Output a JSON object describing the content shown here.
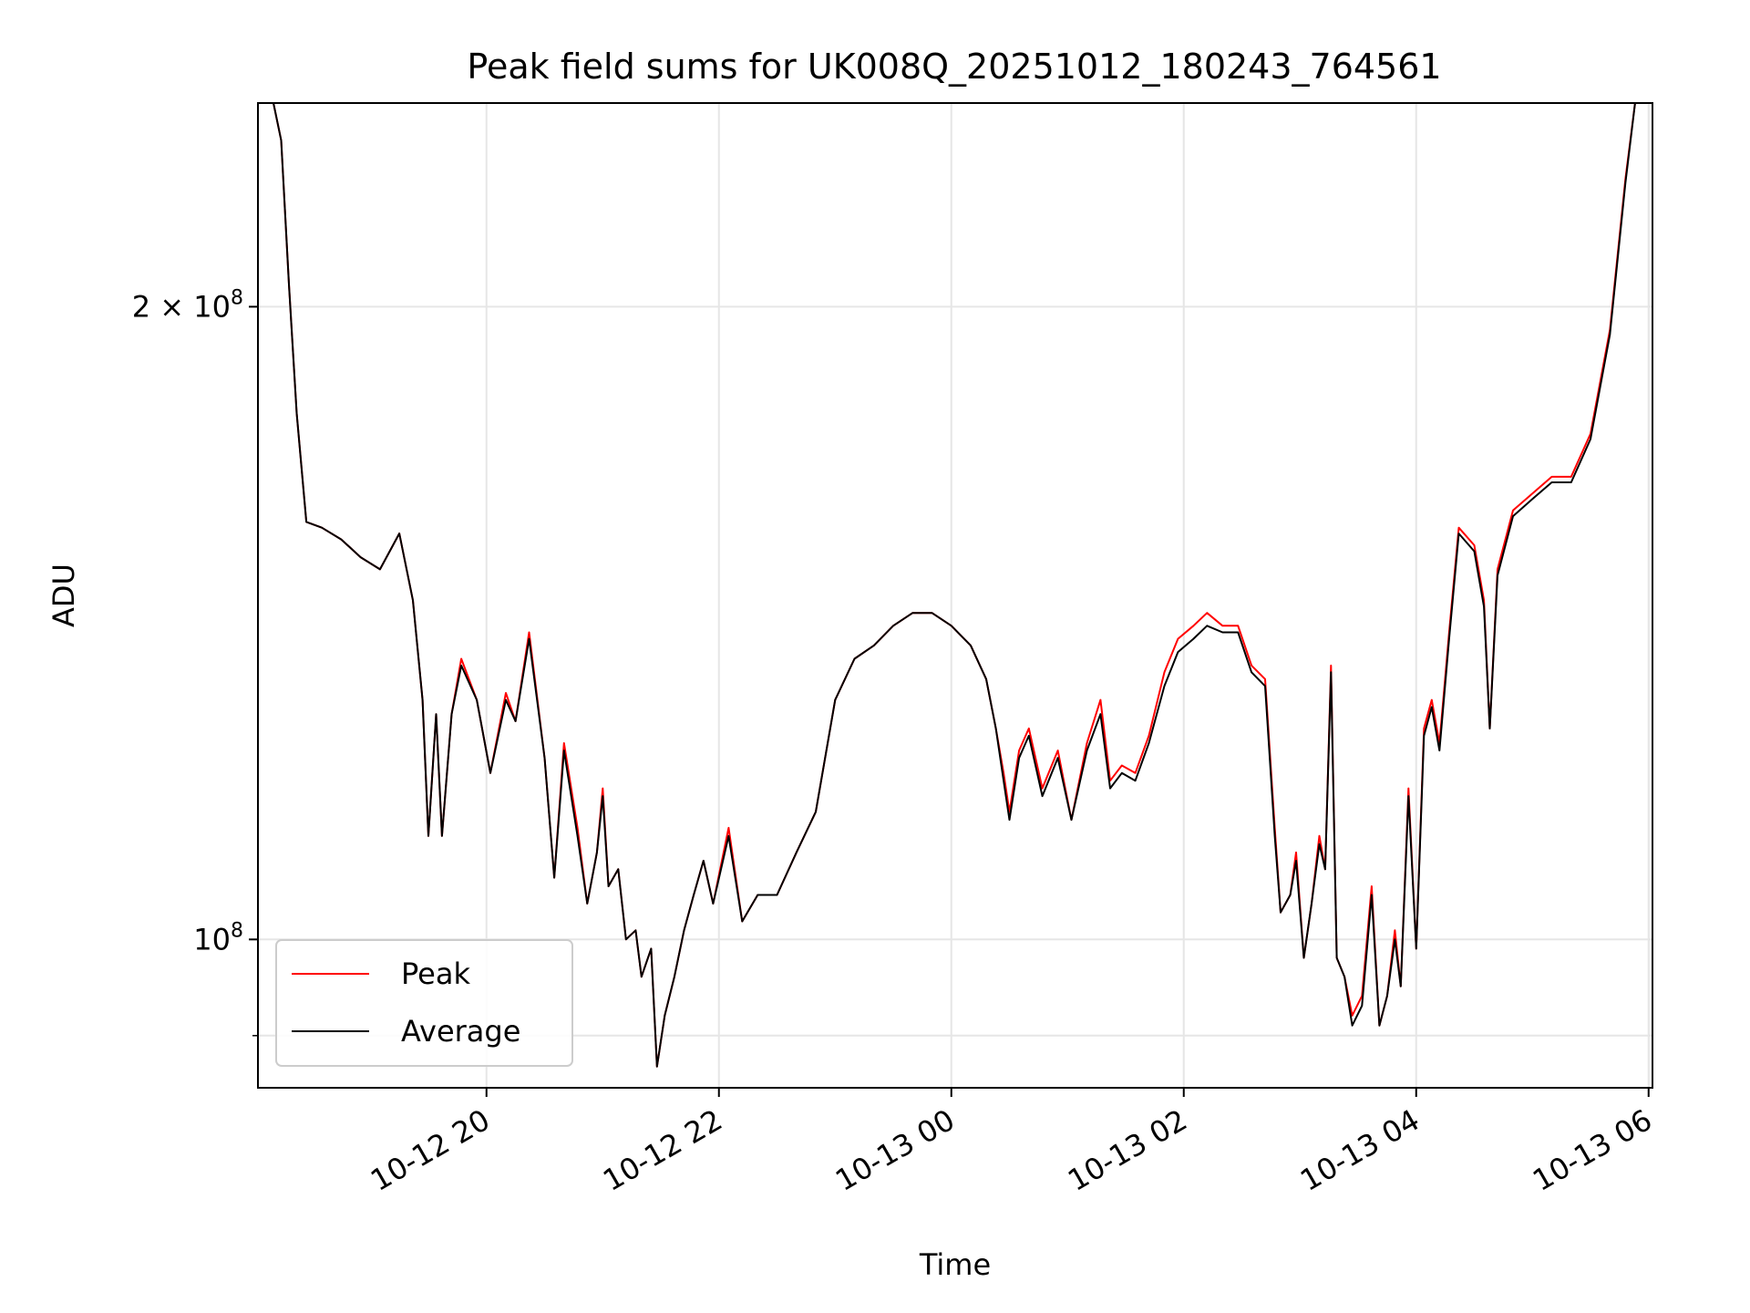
{
  "chart_data": {
    "type": "line",
    "title": "Peak field sums for UK008Q_20251012_180243_764561",
    "xlabel": "Time",
    "ylabel": "ADU",
    "yscale": "log",
    "grid": true,
    "legend_position": "lower-left",
    "xlim": [
      "2025-10-12 18:02",
      "2025-10-13 06:02"
    ],
    "ylim": [
      85000000,
      250000000
    ],
    "x_ticks": [
      "10-12 20",
      "10-12 22",
      "10-13 00",
      "10-13 02",
      "10-13 04",
      "10-13 06"
    ],
    "y_ticks": [
      {
        "value": 200000000,
        "label_base": "2 × 10",
        "label_exp": "8"
      },
      {
        "value": 100000000,
        "label_base": "10",
        "label_exp": "8"
      }
    ],
    "y_minor_ticks": [
      90000000
    ],
    "colors": {
      "Peak": "#ff0000",
      "Average": "#000000"
    },
    "series": [
      {
        "name": "Peak",
        "points": [
          [
            "2025-10-12 18:02",
            250000000
          ],
          [
            "2025-10-12 18:10",
            250000000
          ],
          [
            "2025-10-12 18:14",
            240000000
          ],
          [
            "2025-10-12 18:18",
            205000000
          ],
          [
            "2025-10-12 18:22",
            178000000
          ],
          [
            "2025-10-12 18:27",
            158000000
          ],
          [
            "2025-10-12 18:35",
            157000000
          ],
          [
            "2025-10-12 18:45",
            155000000
          ],
          [
            "2025-10-12 18:55",
            152000000
          ],
          [
            "2025-10-12 19:05",
            150000000
          ],
          [
            "2025-10-12 19:15",
            156000000
          ],
          [
            "2025-10-12 19:22",
            145000000
          ],
          [
            "2025-10-12 19:27",
            130000000
          ],
          [
            "2025-10-12 19:30",
            112000000
          ],
          [
            "2025-10-12 19:34",
            128000000
          ],
          [
            "2025-10-12 19:37",
            112000000
          ],
          [
            "2025-10-12 19:42",
            128000000
          ],
          [
            "2025-10-12 19:47",
            136000000
          ],
          [
            "2025-10-12 19:55",
            130000000
          ],
          [
            "2025-10-12 20:02",
            120000000
          ],
          [
            "2025-10-12 20:10",
            131000000
          ],
          [
            "2025-10-12 20:15",
            127000000
          ],
          [
            "2025-10-12 20:22",
            140000000
          ],
          [
            "2025-10-12 20:30",
            122000000
          ],
          [
            "2025-10-12 20:35",
            107000000
          ],
          [
            "2025-10-12 20:40",
            124000000
          ],
          [
            "2025-10-12 20:47",
            113000000
          ],
          [
            "2025-10-12 20:52",
            104000000
          ],
          [
            "2025-10-12 20:57",
            110000000
          ],
          [
            "2025-10-12 21:00",
            118000000
          ],
          [
            "2025-10-12 21:03",
            106000000
          ],
          [
            "2025-10-12 21:08",
            108000000
          ],
          [
            "2025-10-12 21:12",
            100000000
          ],
          [
            "2025-10-12 21:17",
            101000000
          ],
          [
            "2025-10-12 21:20",
            96000000
          ],
          [
            "2025-10-12 21:25",
            99000000
          ],
          [
            "2025-10-12 21:28",
            87000000
          ],
          [
            "2025-10-12 21:32",
            92000000
          ],
          [
            "2025-10-12 21:37",
            96000000
          ],
          [
            "2025-10-12 21:42",
            101000000
          ],
          [
            "2025-10-12 21:47",
            105000000
          ],
          [
            "2025-10-12 21:52",
            109000000
          ],
          [
            "2025-10-12 21:57",
            104000000
          ],
          [
            "2025-10-12 22:05",
            113000000
          ],
          [
            "2025-10-12 22:12",
            102000000
          ],
          [
            "2025-10-12 22:20",
            105000000
          ],
          [
            "2025-10-12 22:30",
            105000000
          ],
          [
            "2025-10-12 22:40",
            110000000
          ],
          [
            "2025-10-12 22:50",
            115000000
          ],
          [
            "2025-10-12 23:00",
            130000000
          ],
          [
            "2025-10-12 23:10",
            136000000
          ],
          [
            "2025-10-12 23:20",
            138000000
          ],
          [
            "2025-10-12 23:30",
            141000000
          ],
          [
            "2025-10-12 23:40",
            143000000
          ],
          [
            "2025-10-12 23:50",
            143000000
          ],
          [
            "2025-10-13 00:00",
            141000000
          ],
          [
            "2025-10-13 00:10",
            138000000
          ],
          [
            "2025-10-13 00:18",
            133000000
          ],
          [
            "2025-10-13 00:23",
            126000000
          ],
          [
            "2025-10-13 00:27",
            120000000
          ],
          [
            "2025-10-13 00:30",
            115000000
          ],
          [
            "2025-10-13 00:35",
            123000000
          ],
          [
            "2025-10-13 00:40",
            126000000
          ],
          [
            "2025-10-13 00:47",
            118000000
          ],
          [
            "2025-10-13 00:55",
            123000000
          ],
          [
            "2025-10-13 01:02",
            114000000
          ],
          [
            "2025-10-13 01:10",
            124000000
          ],
          [
            "2025-10-13 01:17",
            130000000
          ],
          [
            "2025-10-13 01:22",
            119000000
          ],
          [
            "2025-10-13 01:28",
            121000000
          ],
          [
            "2025-10-13 01:35",
            120000000
          ],
          [
            "2025-10-13 01:42",
            125000000
          ],
          [
            "2025-10-13 01:50",
            134000000
          ],
          [
            "2025-10-13 01:57",
            139000000
          ],
          [
            "2025-10-13 02:05",
            141000000
          ],
          [
            "2025-10-13 02:12",
            143000000
          ],
          [
            "2025-10-13 02:20",
            141000000
          ],
          [
            "2025-10-13 02:28",
            141000000
          ],
          [
            "2025-10-13 02:35",
            135000000
          ],
          [
            "2025-10-13 02:42",
            133000000
          ],
          [
            "2025-10-13 02:47",
            113000000
          ],
          [
            "2025-10-13 02:50",
            103000000
          ],
          [
            "2025-10-13 02:55",
            105000000
          ],
          [
            "2025-10-13 02:58",
            110000000
          ],
          [
            "2025-10-13 03:02",
            98000000
          ],
          [
            "2025-10-13 03:06",
            104000000
          ],
          [
            "2025-10-13 03:10",
            112000000
          ],
          [
            "2025-10-13 03:13",
            108000000
          ],
          [
            "2025-10-13 03:16",
            135000000
          ],
          [
            "2025-10-13 03:19",
            98000000
          ],
          [
            "2025-10-13 03:23",
            96000000
          ],
          [
            "2025-10-13 03:27",
            92000000
          ],
          [
            "2025-10-13 03:32",
            94000000
          ],
          [
            "2025-10-13 03:37",
            106000000
          ],
          [
            "2025-10-13 03:41",
            91000000
          ],
          [
            "2025-10-13 03:45",
            94000000
          ],
          [
            "2025-10-13 03:49",
            101000000
          ],
          [
            "2025-10-13 03:52",
            95000000
          ],
          [
            "2025-10-13 03:56",
            118000000
          ],
          [
            "2025-10-13 04:00",
            99000000
          ],
          [
            "2025-10-13 04:04",
            126000000
          ],
          [
            "2025-10-13 04:08",
            130000000
          ],
          [
            "2025-10-13 04:12",
            124000000
          ],
          [
            "2025-10-13 04:17",
            140000000
          ],
          [
            "2025-10-13 04:22",
            157000000
          ],
          [
            "2025-10-13 04:30",
            154000000
          ],
          [
            "2025-10-13 04:35",
            145000000
          ],
          [
            "2025-10-13 04:38",
            126000000
          ],
          [
            "2025-10-13 04:42",
            150000000
          ],
          [
            "2025-10-13 04:50",
            160000000
          ],
          [
            "2025-10-13 05:00",
            163000000
          ],
          [
            "2025-10-13 05:10",
            166000000
          ],
          [
            "2025-10-13 05:20",
            166000000
          ],
          [
            "2025-10-13 05:30",
            174000000
          ],
          [
            "2025-10-13 05:40",
            195000000
          ],
          [
            "2025-10-13 05:48",
            230000000
          ],
          [
            "2025-10-13 05:53",
            250000000
          ],
          [
            "2025-10-13 06:02",
            250000000
          ]
        ]
      },
      {
        "name": "Average",
        "points": [
          [
            "2025-10-12 18:02",
            250000000
          ],
          [
            "2025-10-12 18:10",
            250000000
          ],
          [
            "2025-10-12 18:14",
            240000000
          ],
          [
            "2025-10-12 18:18",
            205000000
          ],
          [
            "2025-10-12 18:22",
            178000000
          ],
          [
            "2025-10-12 18:27",
            158000000
          ],
          [
            "2025-10-12 18:35",
            157000000
          ],
          [
            "2025-10-12 18:45",
            155000000
          ],
          [
            "2025-10-12 18:55",
            152000000
          ],
          [
            "2025-10-12 19:05",
            150000000
          ],
          [
            "2025-10-12 19:15",
            156000000
          ],
          [
            "2025-10-12 19:22",
            145000000
          ],
          [
            "2025-10-12 19:27",
            130000000
          ],
          [
            "2025-10-12 19:30",
            112000000
          ],
          [
            "2025-10-12 19:34",
            128000000
          ],
          [
            "2025-10-12 19:37",
            112000000
          ],
          [
            "2025-10-12 19:42",
            128000000
          ],
          [
            "2025-10-12 19:47",
            135000000
          ],
          [
            "2025-10-12 19:55",
            130000000
          ],
          [
            "2025-10-12 20:02",
            120000000
          ],
          [
            "2025-10-12 20:10",
            130000000
          ],
          [
            "2025-10-12 20:15",
            127000000
          ],
          [
            "2025-10-12 20:22",
            139000000
          ],
          [
            "2025-10-12 20:30",
            122000000
          ],
          [
            "2025-10-12 20:35",
            107000000
          ],
          [
            "2025-10-12 20:40",
            123000000
          ],
          [
            "2025-10-12 20:47",
            112000000
          ],
          [
            "2025-10-12 20:52",
            104000000
          ],
          [
            "2025-10-12 20:57",
            110000000
          ],
          [
            "2025-10-12 21:00",
            117000000
          ],
          [
            "2025-10-12 21:03",
            106000000
          ],
          [
            "2025-10-12 21:08",
            108000000
          ],
          [
            "2025-10-12 21:12",
            100000000
          ],
          [
            "2025-10-12 21:17",
            101000000
          ],
          [
            "2025-10-12 21:20",
            96000000
          ],
          [
            "2025-10-12 21:25",
            99000000
          ],
          [
            "2025-10-12 21:28",
            87000000
          ],
          [
            "2025-10-12 21:32",
            92000000
          ],
          [
            "2025-10-12 21:37",
            96000000
          ],
          [
            "2025-10-12 21:42",
            101000000
          ],
          [
            "2025-10-12 21:47",
            105000000
          ],
          [
            "2025-10-12 21:52",
            109000000
          ],
          [
            "2025-10-12 21:57",
            104000000
          ],
          [
            "2025-10-12 22:05",
            112000000
          ],
          [
            "2025-10-12 22:12",
            102000000
          ],
          [
            "2025-10-12 22:20",
            105000000
          ],
          [
            "2025-10-12 22:30",
            105000000
          ],
          [
            "2025-10-12 22:40",
            110000000
          ],
          [
            "2025-10-12 22:50",
            115000000
          ],
          [
            "2025-10-12 23:00",
            130000000
          ],
          [
            "2025-10-12 23:10",
            136000000
          ],
          [
            "2025-10-12 23:20",
            138000000
          ],
          [
            "2025-10-12 23:30",
            141000000
          ],
          [
            "2025-10-12 23:40",
            143000000
          ],
          [
            "2025-10-12 23:50",
            143000000
          ],
          [
            "2025-10-13 00:00",
            141000000
          ],
          [
            "2025-10-13 00:10",
            138000000
          ],
          [
            "2025-10-13 00:18",
            133000000
          ],
          [
            "2025-10-13 00:23",
            126000000
          ],
          [
            "2025-10-13 00:27",
            119000000
          ],
          [
            "2025-10-13 00:30",
            114000000
          ],
          [
            "2025-10-13 00:35",
            122000000
          ],
          [
            "2025-10-13 00:40",
            125000000
          ],
          [
            "2025-10-13 00:47",
            117000000
          ],
          [
            "2025-10-13 00:55",
            122000000
          ],
          [
            "2025-10-13 01:02",
            114000000
          ],
          [
            "2025-10-13 01:10",
            123000000
          ],
          [
            "2025-10-13 01:17",
            128000000
          ],
          [
            "2025-10-13 01:22",
            118000000
          ],
          [
            "2025-10-13 01:28",
            120000000
          ],
          [
            "2025-10-13 01:35",
            119000000
          ],
          [
            "2025-10-13 01:42",
            124000000
          ],
          [
            "2025-10-13 01:50",
            132000000
          ],
          [
            "2025-10-13 01:57",
            137000000
          ],
          [
            "2025-10-13 02:05",
            139000000
          ],
          [
            "2025-10-13 02:12",
            141000000
          ],
          [
            "2025-10-13 02:20",
            140000000
          ],
          [
            "2025-10-13 02:28",
            140000000
          ],
          [
            "2025-10-13 02:35",
            134000000
          ],
          [
            "2025-10-13 02:42",
            132000000
          ],
          [
            "2025-10-13 02:47",
            112000000
          ],
          [
            "2025-10-13 02:50",
            103000000
          ],
          [
            "2025-10-13 02:55",
            105000000
          ],
          [
            "2025-10-13 02:58",
            109000000
          ],
          [
            "2025-10-13 03:02",
            98000000
          ],
          [
            "2025-10-13 03:06",
            104000000
          ],
          [
            "2025-10-13 03:10",
            111000000
          ],
          [
            "2025-10-13 03:13",
            108000000
          ],
          [
            "2025-10-13 03:16",
            134000000
          ],
          [
            "2025-10-13 03:19",
            98000000
          ],
          [
            "2025-10-13 03:23",
            96000000
          ],
          [
            "2025-10-13 03:27",
            91000000
          ],
          [
            "2025-10-13 03:32",
            93000000
          ],
          [
            "2025-10-13 03:37",
            105000000
          ],
          [
            "2025-10-13 03:41",
            91000000
          ],
          [
            "2025-10-13 03:45",
            94000000
          ],
          [
            "2025-10-13 03:49",
            100000000
          ],
          [
            "2025-10-13 03:52",
            95000000
          ],
          [
            "2025-10-13 03:56",
            117000000
          ],
          [
            "2025-10-13 04:00",
            99000000
          ],
          [
            "2025-10-13 04:04",
            125000000
          ],
          [
            "2025-10-13 04:08",
            129000000
          ],
          [
            "2025-10-13 04:12",
            123000000
          ],
          [
            "2025-10-13 04:17",
            139000000
          ],
          [
            "2025-10-13 04:22",
            156000000
          ],
          [
            "2025-10-13 04:30",
            153000000
          ],
          [
            "2025-10-13 04:35",
            144000000
          ],
          [
            "2025-10-13 04:38",
            126000000
          ],
          [
            "2025-10-13 04:42",
            149000000
          ],
          [
            "2025-10-13 04:50",
            159000000
          ],
          [
            "2025-10-13 05:00",
            162000000
          ],
          [
            "2025-10-13 05:10",
            165000000
          ],
          [
            "2025-10-13 05:20",
            165000000
          ],
          [
            "2025-10-13 05:30",
            173000000
          ],
          [
            "2025-10-13 05:40",
            194000000
          ],
          [
            "2025-10-13 05:48",
            229000000
          ],
          [
            "2025-10-13 05:53",
            250000000
          ],
          [
            "2025-10-13 06:02",
            250000000
          ]
        ]
      }
    ]
  }
}
